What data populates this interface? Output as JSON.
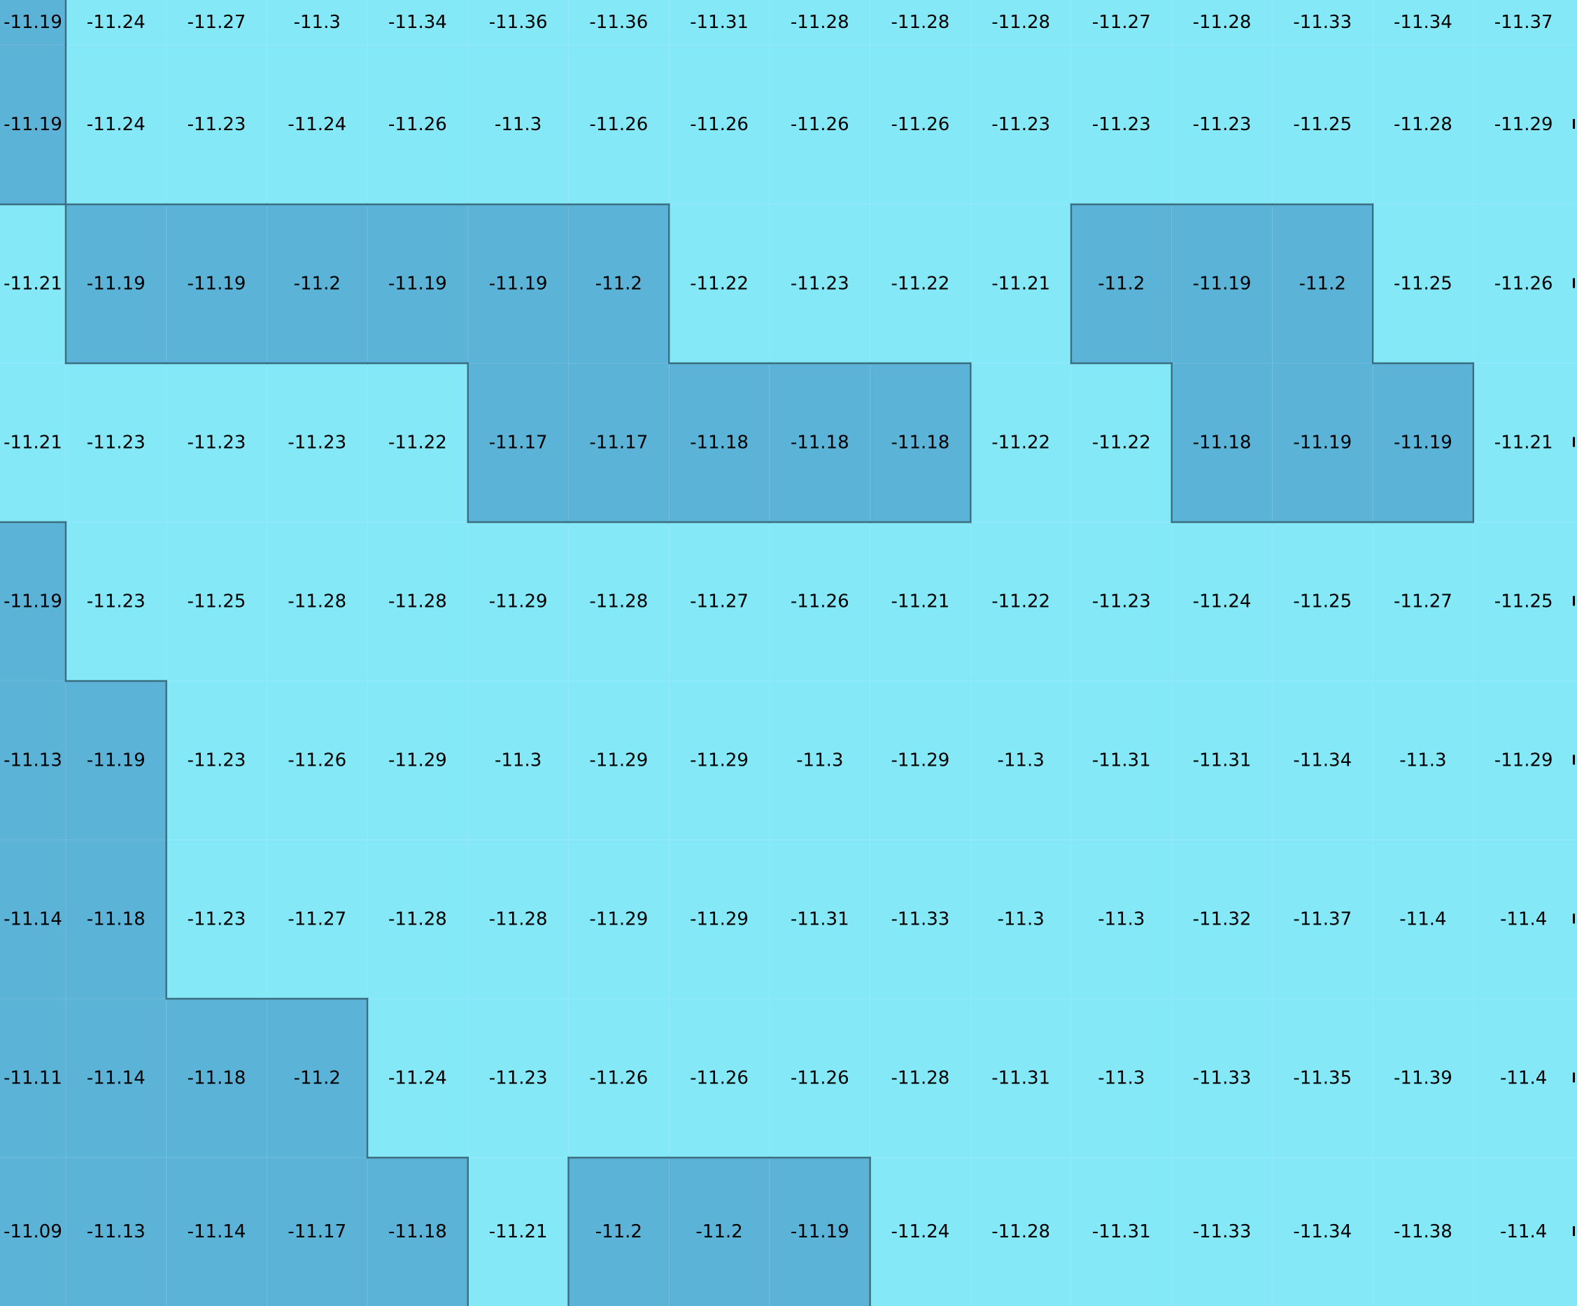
{
  "chart_data": {
    "type": "heatmap",
    "title": "",
    "xlabel": "",
    "ylabel": "",
    "legend": "none",
    "grid": true,
    "threshold": -11.21,
    "colors": {
      "low": "#85e8f7",
      "high": "#5cb3d8",
      "border": "#3a6e80",
      "text": "#000000"
    },
    "values": [
      [
        -11.19,
        -11.24,
        -11.27,
        -11.3,
        -11.34,
        -11.36,
        -11.36,
        -11.31,
        -11.28,
        -11.28,
        -11.28,
        -11.27,
        -11.28,
        -11.33,
        -11.34,
        -11.37
      ],
      [
        -11.19,
        -11.24,
        -11.23,
        -11.24,
        -11.26,
        -11.3,
        -11.26,
        -11.26,
        -11.26,
        -11.26,
        -11.23,
        -11.23,
        -11.23,
        -11.25,
        -11.28,
        -11.29
      ],
      [
        -11.21,
        -11.19,
        -11.19,
        -11.2,
        -11.19,
        -11.19,
        -11.2,
        -11.22,
        -11.23,
        -11.22,
        -11.21,
        -11.2,
        -11.19,
        -11.2,
        -11.25,
        -11.26
      ],
      [
        -11.21,
        -11.23,
        -11.23,
        -11.23,
        -11.22,
        -11.17,
        -11.17,
        -11.18,
        -11.18,
        -11.18,
        -11.22,
        -11.22,
        -11.18,
        -11.19,
        -11.19,
        -11.21
      ],
      [
        -11.19,
        -11.23,
        -11.25,
        -11.28,
        -11.28,
        -11.29,
        -11.28,
        -11.27,
        -11.26,
        -11.21,
        -11.22,
        -11.23,
        -11.24,
        -11.25,
        -11.27,
        -11.25
      ],
      [
        -11.13,
        -11.19,
        -11.23,
        -11.26,
        -11.29,
        -11.3,
        -11.29,
        -11.29,
        -11.3,
        -11.29,
        -11.3,
        -11.31,
        -11.31,
        -11.34,
        -11.3,
        -11.29
      ],
      [
        -11.14,
        -11.18,
        -11.23,
        -11.27,
        -11.28,
        -11.28,
        -11.29,
        -11.29,
        -11.31,
        -11.33,
        -11.3,
        -11.3,
        -11.32,
        -11.37,
        -11.4,
        -11.4
      ],
      [
        -11.11,
        -11.14,
        -11.18,
        -11.2,
        -11.24,
        -11.23,
        -11.26,
        -11.26,
        -11.26,
        -11.28,
        -11.31,
        -11.3,
        -11.33,
        -11.35,
        -11.39,
        -11.4
      ],
      [
        -11.09,
        -11.13,
        -11.14,
        -11.17,
        -11.18,
        -11.21,
        -11.2,
        -11.2,
        -11.19,
        -11.24,
        -11.28,
        -11.31,
        -11.33,
        -11.34,
        -11.38,
        -11.4
      ]
    ]
  }
}
